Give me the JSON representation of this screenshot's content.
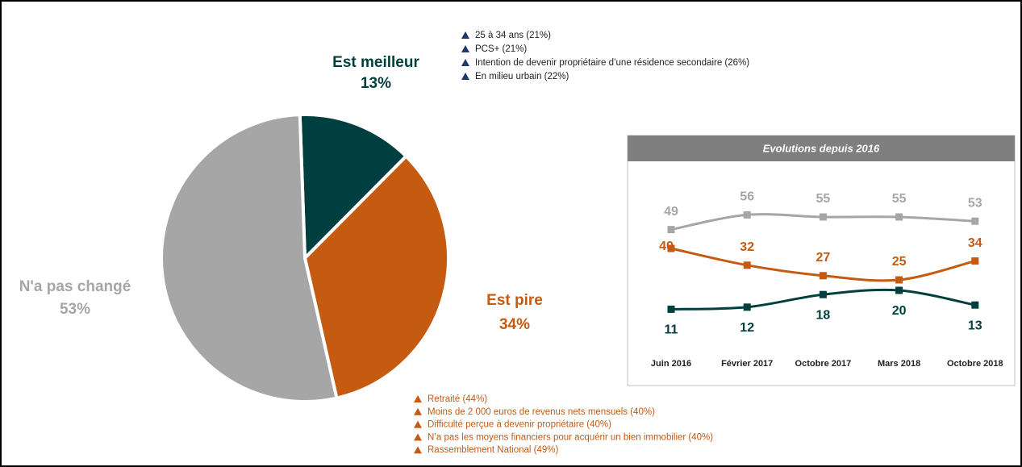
{
  "chart_data": [
    {
      "type": "pie",
      "categories": [
        "Est meilleur",
        "Est pire",
        "N'a pas changé"
      ],
      "values": [
        13,
        34,
        53
      ],
      "value_labels": [
        "13%",
        "34%",
        "53%"
      ],
      "colors": [
        "#003f3f",
        "#c55a11",
        "#a6a6a6"
      ],
      "annotations_better": [
        "25 à 34 ans (21%)",
        "PCS+ (21%)",
        "Intention de devenir propriétaire d’une résidence secondaire (26%)",
        "En milieu urbain (22%)"
      ],
      "annotations_worse": [
        "Retraité (44%)",
        "Moins de 2 000 euros de revenus nets mensuels (40%)",
        "Difficulté perçue à devenir propriétaire (40%)",
        "N’a pas les moyens financiers pour acquérir un bien immobilier (40%)",
        "Rassemblement National (49%)"
      ]
    },
    {
      "type": "line",
      "title": "Evolutions depuis 2016",
      "categories": [
        "Juin 2016",
        "Février 2017",
        "Octobre 2017",
        "Mars 2018",
        "Octobre 2018"
      ],
      "ylim": [
        0,
        70
      ],
      "series": [
        {
          "color": "#a6a6a6",
          "values": [
            49,
            56,
            55,
            55,
            53
          ]
        },
        {
          "color": "#c55a11",
          "values": [
            40,
            32,
            27,
            25,
            34
          ]
        },
        {
          "color": "#003f3f",
          "values": [
            11,
            12,
            18,
            20,
            13
          ]
        }
      ]
    }
  ]
}
